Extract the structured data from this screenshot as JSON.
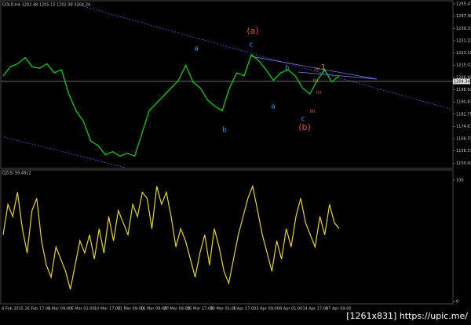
{
  "chart_data": [
    {
      "type": "line",
      "title": "GOLD,H4 1202.48 1205.15 1202.38 1204.34",
      "color": "#00e000",
      "values": [
        1208,
        1214,
        1216,
        1220,
        1214,
        1213,
        1216,
        1210,
        1212,
        1196,
        1185,
        1178,
        1165,
        1162,
        1156,
        1158,
        1155,
        1157,
        1155,
        1170,
        1185,
        1190,
        1195,
        1200,
        1205,
        1215,
        1204,
        1200,
        1192,
        1188,
        1185,
        1200,
        1210,
        1208,
        1222,
        1218,
        1212,
        1205,
        1210,
        1212,
        1208,
        1200,
        1196,
        1205,
        1212,
        1204,
        1208
      ],
      "current_price": {
        "value": 1204.34,
        "label": "1204.34"
      },
      "ylim": [
        1147,
        1257
      ],
      "yticks": [
        1255.47,
        1247.39,
        1239.31,
        1231.23,
        1223.15,
        1215.07,
        1206.99,
        1198.91,
        1190.83,
        1182.75,
        1174.67,
        1166.59,
        1158.51,
        1150.43
      ],
      "annotations": [
        "(a)",
        "c",
        "a",
        "b",
        "b",
        "a",
        "c",
        "(b)",
        "1",
        "(a)",
        "(b)",
        "(c)",
        "(b)"
      ]
    },
    {
      "type": "line",
      "title": "DZ(5) 59.4912",
      "color": "#e8d800",
      "values": [
        55,
        80,
        70,
        90,
        60,
        40,
        75,
        85,
        50,
        30,
        20,
        45,
        35,
        25,
        10,
        30,
        50,
        40,
        55,
        35,
        60,
        40,
        70,
        50,
        75,
        65,
        55,
        80,
        70,
        90,
        85,
        60,
        95,
        80,
        90,
        70,
        45,
        60,
        50,
        35,
        20,
        40,
        55,
        30,
        60,
        45,
        25,
        15,
        35,
        55,
        70,
        85,
        95,
        75,
        55,
        40,
        25,
        50,
        35,
        60,
        45,
        70,
        85,
        65,
        55,
        45,
        70,
        55,
        80,
        65,
        60
      ],
      "ylim": [
        0,
        100
      ],
      "yticks": [
        100,
        0
      ],
      "x_labels": [
        "4 Feb 2015",
        "26 Feb 17:00",
        "5 Mar 09:00",
        "6 Mar 01:00",
        "10 Mar 17:00",
        "11 Mar 09:00",
        "16 Mar 09:00",
        "20 Mar 09:00",
        "25 Mar 17:00",
        "30 Mar 01:00",
        "1 Apr 17:00",
        "3 Apr 09:00",
        "8 Apr 01:00",
        "14 Apr 17:00",
        "17 Apr 09:00"
      ],
      "watermark": "[1261x831] https://upic.me/"
    }
  ]
}
